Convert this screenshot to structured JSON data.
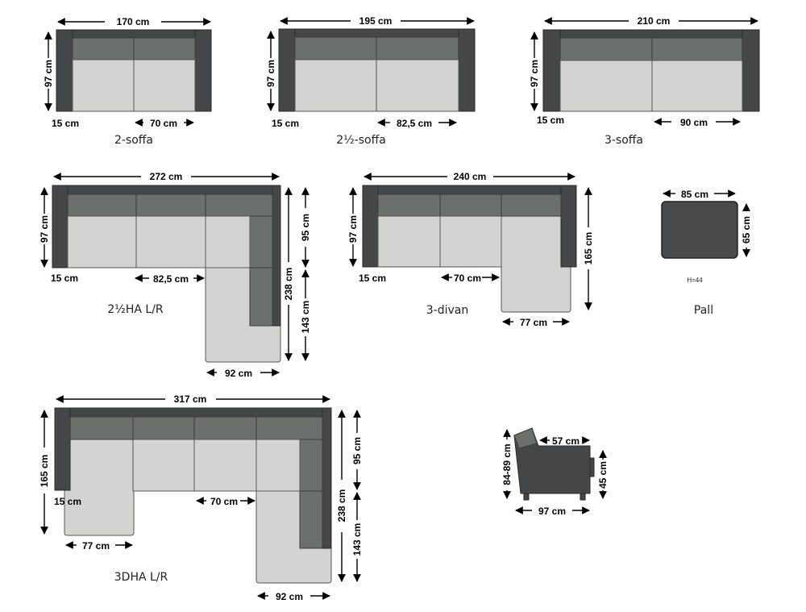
{
  "models": {
    "sofa2": {
      "name": "2-soffa",
      "width": "170 cm",
      "depth": "97 cm",
      "arm": "15 cm",
      "seat": "70 cm"
    },
    "sofa25": {
      "name": "2½-soffa",
      "width": "195 cm",
      "depth": "97 cm",
      "arm": "15 cm",
      "seat": "82,5 cm"
    },
    "sofa3": {
      "name": "3-soffa",
      "width": "210 cm",
      "depth": "97 cm",
      "arm": "15 cm",
      "seat": "90 cm"
    },
    "ha25": {
      "name": "2½HA L/R",
      "width": "272 cm",
      "depth": "97 cm",
      "arm": "15 cm",
      "seat": "82,5 cm",
      "upper": "95 cm",
      "total_depth": "238 cm",
      "lower": "143 cm",
      "corner_width": "92 cm"
    },
    "divan3": {
      "name": "3-divan",
      "width": "240 cm",
      "depth": "97 cm",
      "arm": "15 cm",
      "seat": "70 cm",
      "divan_length": "165 cm",
      "divan_width": "77 cm"
    },
    "pall": {
      "name": "Pall",
      "width": "85 cm",
      "depth": "65 cm",
      "height_note": "H=44"
    },
    "dha3": {
      "name": "3DHA L/R",
      "width": "317 cm",
      "divan_length": "165 cm",
      "arm": "15 cm",
      "seat": "70 cm",
      "divan_width": "77 cm",
      "upper": "95 cm",
      "total_depth": "238 cm",
      "lower": "143 cm",
      "corner_width": "92 cm"
    },
    "side": {
      "height": "84-89 cm",
      "seat_depth": "57 cm",
      "seat_height": "45 cm",
      "depth": "97 cm"
    }
  },
  "colors": {
    "arm": "#444647",
    "back": "#6b706d",
    "seat": "#d3d4d1"
  }
}
